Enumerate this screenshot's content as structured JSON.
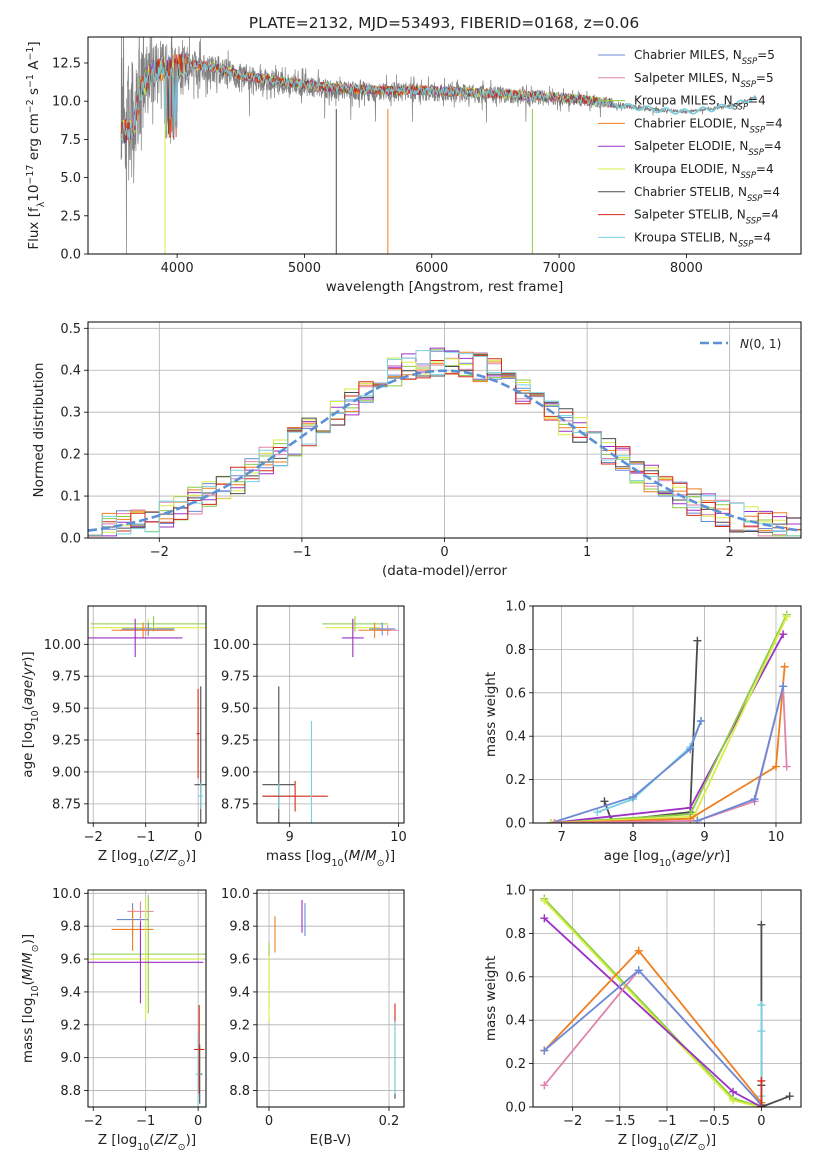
{
  "figure_title": "PLATE=2132, MJD=53493, FIBERID=0168, z=0.06",
  "colors": {
    "Chabrier MILES": "#6b8ad6",
    "Salpeter MILES": "#e083ad",
    "Kroupa MILES": "#8ccb47",
    "Chabrier ELODIE": "#ef7f21",
    "Salpeter ELODIE": "#9c30c5",
    "Kroupa ELODIE": "#d7ee47",
    "Chabrier STELIB": "#4c4c4c",
    "Salpeter STELIB": "#d42a1b",
    "Kroupa STELIB": "#79d0df",
    "data": "#7f7f7f"
  },
  "chart_data": [
    {
      "id": "spectrum",
      "type": "line",
      "title": "PLATE=2132, MJD=53493, FIBERID=0168, z=0.06",
      "xlabel": "wavelength [Angstrom, rest frame]",
      "ylabel": "Flux [f_λ 10^-17 erg cm^-2 s^-1 A^-1]",
      "xlim": [
        3300,
        8900
      ],
      "ylim": [
        0,
        14.2
      ],
      "xticks": [
        4000,
        5000,
        6000,
        7000,
        8000
      ],
      "yticks": [
        0.0,
        2.5,
        5.0,
        7.5,
        10.0,
        12.5
      ],
      "grid": false,
      "legend": "upper right",
      "legend_entries": [
        {
          "model": "Chabrier MILES",
          "label": "Chabrier MILES, N",
          "sub": "SSP",
          "tail": "=5"
        },
        {
          "model": "Salpeter MILES",
          "label": "Salpeter MILES, N",
          "sub": "SSP",
          "tail": "=5"
        },
        {
          "model": "Kroupa MILES",
          "label": "Kroupa MILES, N",
          "sub": "SSP",
          "tail": "=4"
        },
        {
          "model": "Chabrier ELODIE",
          "label": "Chabrier ELODIE, N",
          "sub": "SSP",
          "tail": "=4"
        },
        {
          "model": "Salpeter ELODIE",
          "label": "Salpeter ELODIE, N",
          "sub": "SSP",
          "tail": "=4"
        },
        {
          "model": "Kroupa ELODIE",
          "label": "Kroupa ELODIE, N",
          "sub": "SSP",
          "tail": "=4"
        },
        {
          "model": "Chabrier STELIB",
          "label": "Chabrier STELIB, N",
          "sub": "SSP",
          "tail": "=4"
        },
        {
          "model": "Salpeter STELIB",
          "label": "Salpeter STELIB, N",
          "sub": "SSP",
          "tail": "=4"
        },
        {
          "model": "Kroupa STELIB",
          "label": "Kroupa STELIB, N",
          "sub": "SSP",
          "tail": "=4"
        }
      ],
      "data_envelope": {
        "x": [
          3560,
          3650,
          3700,
          3800,
          3900,
          4000,
          4100,
          4300,
          4500,
          4800,
          5200,
          5600,
          6000,
          6500,
          6900,
          7200,
          7400,
          7600,
          7800,
          8000,
          8200,
          8400,
          8550
        ],
        "y": [
          8.5,
          8.6,
          10.5,
          11.8,
          12.0,
          12.2,
          12.3,
          12.1,
          11.6,
          11.2,
          10.8,
          10.6,
          10.6,
          10.4,
          10.2,
          10.0,
          9.8,
          9.6,
          9.4,
          9.3,
          9.5,
          9.8,
          10.3
        ],
        "noise_amplitude": [
          9.0,
          8.0,
          6.0,
          4.0,
          3.5,
          3.0,
          2.5,
          1.9,
          1.7,
          1.5,
          1.3,
          1.3,
          1.3,
          1.2,
          1.0,
          0.8,
          0.5,
          0.3,
          0.25,
          0.2,
          0.2,
          0.2,
          0.2
        ]
      },
      "model_end_wavelength": 7420,
      "absorption_spikes": [
        {
          "model": "Kroupa ELODIE",
          "x": 3905
        },
        {
          "model": "Chabrier ELODIE",
          "x": 5655
        },
        {
          "model": "Kroupa MILES",
          "x": 6790
        },
        {
          "model": "Chabrier STELIB",
          "x": 5250
        }
      ]
    },
    {
      "id": "residuals",
      "type": "step",
      "xlabel": "(data-model)/error",
      "ylabel": "Normed distribution",
      "xlim": [
        -2.5,
        2.5
      ],
      "ylim": [
        0,
        0.515
      ],
      "xticks": [
        -2,
        -1,
        0,
        1,
        2
      ],
      "yticks": [
        0.0,
        0.1,
        0.2,
        0.3,
        0.4,
        0.5
      ],
      "grid": true,
      "legend": "upper right",
      "reference_label": "N(0, 1)",
      "bin_width": 0.1,
      "bin_start": -2.5
    },
    {
      "id": "age_vs_Z",
      "type": "errorbar",
      "xlabel": "Z [log10(Z/Z_sun)]",
      "ylabel": "age  [log10(age/yr)]",
      "xlim": [
        -2.1,
        0.15
      ],
      "ylim": [
        8.6,
        10.3
      ],
      "xticks": [
        -2,
        -1,
        0
      ],
      "yticks": [
        8.75,
        9.0,
        9.25,
        9.5,
        9.75,
        10.0
      ],
      "grid": true,
      "series": [
        {
          "model": "Kroupa MILES",
          "x": -0.85,
          "xerr": 1.2,
          "y": 10.16,
          "yerr": 0.06
        },
        {
          "model": "Kroupa ELODIE",
          "x": -0.95,
          "xerr": 1.1,
          "y": 10.13,
          "yerr": 0.07
        },
        {
          "model": "Chabrier MILES",
          "x": -0.95,
          "xerr": 0.5,
          "y": 10.12,
          "yerr": 0.05
        },
        {
          "model": "Salpeter MILES",
          "x": -1.0,
          "xerr": 0.5,
          "y": 10.11,
          "yerr": 0.04
        },
        {
          "model": "Chabrier ELODIE",
          "x": -1.05,
          "xerr": 0.6,
          "y": 10.11,
          "yerr": 0.06
        },
        {
          "model": "Salpeter ELODIE",
          "x": -1.2,
          "xerr": 0.9,
          "y": 10.05,
          "yerr": 0.15
        },
        {
          "model": "Chabrier STELIB",
          "x": 0.05,
          "xerr": 0.12,
          "y": 8.9,
          "yerr": 0.77
        },
        {
          "model": "Kroupa STELIB",
          "x": 0.05,
          "xerr": 0.05,
          "y": 8.81,
          "yerr": 0.1
        },
        {
          "model": "Salpeter STELIB",
          "x": 0.0,
          "xerr": 0.03,
          "y": 9.3,
          "yerr": 0.35
        }
      ]
    },
    {
      "id": "age_vs_mass",
      "type": "errorbar",
      "xlabel": "mass [log10(M/M_sun)]",
      "ylabel": "",
      "xlim": [
        8.7,
        10.05
      ],
      "ylim": [
        8.6,
        10.3
      ],
      "xticks": [
        9,
        10
      ],
      "yticks": [
        8.75,
        9.0,
        9.25,
        9.5,
        9.75,
        10.0
      ],
      "grid": true,
      "series": [
        {
          "model": "Kroupa MILES",
          "x": 9.6,
          "xerr": 0.3,
          "y": 10.16,
          "yerr": 0.06
        },
        {
          "model": "Kroupa ELODIE",
          "x": 9.58,
          "xerr": 0.25,
          "y": 10.13,
          "yerr": 0.07
        },
        {
          "model": "Chabrier MILES",
          "x": 9.85,
          "xerr": 0.12,
          "y": 10.12,
          "yerr": 0.05
        },
        {
          "model": "Salpeter MILES",
          "x": 9.9,
          "xerr": 0.1,
          "y": 10.11,
          "yerr": 0.04
        },
        {
          "model": "Chabrier ELODIE",
          "x": 9.78,
          "xerr": 0.15,
          "y": 10.11,
          "yerr": 0.06
        },
        {
          "model": "Salpeter ELODIE",
          "x": 9.58,
          "xerr": 0.1,
          "y": 10.05,
          "yerr": 0.15
        },
        {
          "model": "Chabrier STELIB",
          "x": 8.9,
          "xerr": 0.15,
          "y": 8.9,
          "yerr": 0.77
        },
        {
          "model": "Kroupa STELIB",
          "x": 8.9,
          "xerr": 0.15,
          "y": 8.81,
          "yerr": 0.1
        },
        {
          "model": "Salpeter STELIB",
          "x": 9.05,
          "xerr": 0.3,
          "y": 8.81,
          "yerr": 0.12
        },
        {
          "model": "Kroupa STELIB",
          "x": 9.2,
          "xerr": 0.0,
          "y": 9.0,
          "yerr": 0.4
        }
      ]
    },
    {
      "id": "weight_vs_age",
      "type": "line",
      "xlabel": "age  [log10(age/yr)]",
      "ylabel": "mass weight",
      "xlim": [
        6.6,
        10.35
      ],
      "ylim": [
        0,
        1.0
      ],
      "xticks": [
        7,
        8,
        9,
        10
      ],
      "yticks": [
        0.0,
        0.2,
        0.4,
        0.6,
        0.8,
        1.0
      ],
      "grid": true,
      "series": [
        {
          "model": "Chabrier STELIB",
          "x": [
            7.6,
            7.7,
            8.8,
            8.9
          ],
          "y": [
            0.1,
            0.01,
            0.05,
            0.84
          ]
        },
        {
          "model": "Kroupa STELIB",
          "x": [
            7.5,
            8.0,
            8.8,
            8.95
          ],
          "y": [
            0.05,
            0.11,
            0.35,
            0.47
          ]
        },
        {
          "model": "Chabrier MILES",
          "x": [
            6.85,
            8.0,
            8.8,
            8.95
          ],
          "y": [
            0.0,
            0.12,
            0.34,
            0.47
          ]
        },
        {
          "model": "Salpeter ELODIE",
          "x": [
            6.85,
            8.8,
            10.1
          ],
          "y": [
            0.0,
            0.07,
            0.87
          ]
        },
        {
          "model": "Kroupa MILES",
          "x": [
            6.85,
            8.8,
            10.15
          ],
          "y": [
            0.0,
            0.04,
            0.96
          ]
        },
        {
          "model": "Kroupa ELODIE",
          "x": [
            6.85,
            8.85,
            10.15
          ],
          "y": [
            0.0,
            0.03,
            0.95
          ]
        },
        {
          "model": "Chabrier ELODIE",
          "x": [
            6.9,
            8.8,
            10.0,
            10.12
          ],
          "y": [
            0.0,
            0.02,
            0.26,
            0.72
          ]
        },
        {
          "model": "Salpeter MILES",
          "x": [
            6.9,
            8.9,
            9.7,
            10.1,
            10.15
          ],
          "y": [
            0.0,
            0.01,
            0.1,
            0.63,
            0.26
          ]
        },
        {
          "model": "Chabrier MILES",
          "x": [
            8.9,
            9.7,
            10.1
          ],
          "y": [
            0.01,
            0.11,
            0.63
          ]
        }
      ]
    },
    {
      "id": "mass_vs_Z",
      "type": "errorbar",
      "xlabel": "Z [log10(Z/Z_sun)]",
      "ylabel": "mass [log10(M/M_sun)]",
      "xlim": [
        -2.1,
        0.15
      ],
      "ylim": [
        8.7,
        10.02
      ],
      "xticks": [
        -2,
        -1,
        0
      ],
      "yticks": [
        8.8,
        9.0,
        9.2,
        9.4,
        9.6,
        9.8,
        10.0
      ],
      "grid": true,
      "series": [
        {
          "model": "Chabrier MILES",
          "x": -1.25,
          "xerr": 0.3,
          "y": 9.84,
          "yerr": 0.1
        },
        {
          "model": "Salpeter MILES",
          "x": -1.1,
          "xerr": 0.25,
          "y": 9.89,
          "yerr": 0.06
        },
        {
          "model": "Chabrier ELODIE",
          "x": -1.25,
          "xerr": 0.4,
          "y": 9.78,
          "yerr": 0.13
        },
        {
          "model": "Kroupa MILES",
          "x": -0.95,
          "xerr": 1.1,
          "y": 9.63,
          "yerr": 0.36
        },
        {
          "model": "Kroupa ELODIE",
          "x": -1.0,
          "xerr": 1.1,
          "y": 9.6,
          "yerr": 0.37
        },
        {
          "model": "Salpeter ELODIE",
          "x": -1.1,
          "xerr": 1.2,
          "y": 9.58,
          "yerr": 0.25
        },
        {
          "model": "Chabrier STELIB",
          "x": 0.03,
          "xerr": 0.05,
          "y": 8.9,
          "yerr": 0.18
        },
        {
          "model": "Kroupa STELIB",
          "x": 0.0,
          "xerr": 0.05,
          "y": 8.9,
          "yerr": 0.25
        },
        {
          "model": "Salpeter STELIB",
          "x": 0.02,
          "xerr": 0.1,
          "y": 9.05,
          "yerr": 0.27
        }
      ]
    },
    {
      "id": "mass_vs_EBV",
      "type": "errorbar",
      "xlabel": "E(B-V)",
      "ylabel": "",
      "xlim": [
        -0.02,
        0.225
      ],
      "ylim": [
        8.7,
        10.02
      ],
      "xticks": [
        0.0,
        0.2
      ],
      "yticks": [
        8.8,
        9.0,
        9.2,
        9.4,
        9.6,
        9.8,
        10.0
      ],
      "grid": true,
      "series": [
        {
          "model": "Chabrier MILES",
          "x": 0.06,
          "xerr": 0.0,
          "y": 9.84,
          "yerr": 0.1
        },
        {
          "model": "Salpeter ELODIE",
          "x": 0.055,
          "xerr": 0.0,
          "y": 9.86,
          "yerr": 0.1
        },
        {
          "model": "Chabrier ELODIE",
          "x": 0.01,
          "xerr": 0.0,
          "y": 9.75,
          "yerr": 0.11
        },
        {
          "model": "Kroupa MILES",
          "x": 0.0,
          "xerr": 0.0,
          "y": 9.5,
          "yerr": 0.2
        },
        {
          "model": "Kroupa ELODIE",
          "x": 0.0,
          "xerr": 0.0,
          "y": 9.42,
          "yerr": 0.2
        },
        {
          "model": "Salpeter STELIB",
          "x": 0.21,
          "xerr": 0.0,
          "y": 9.25,
          "yerr": 0.08
        },
        {
          "model": "Chabrier STELIB",
          "x": 0.21,
          "xerr": 0.0,
          "y": 8.95,
          "yerr": 0.2
        },
        {
          "model": "Kroupa STELIB",
          "x": 0.21,
          "xerr": 0.0,
          "y": 9.0,
          "yerr": 0.22
        }
      ]
    },
    {
      "id": "weight_vs_Z",
      "type": "line",
      "xlabel": "Z [log10(Z/Z_sun)]",
      "ylabel": "mass weight",
      "xlim": [
        -2.42,
        0.42
      ],
      "ylim": [
        0,
        1.0
      ],
      "xticks": [
        -2.0,
        -1.5,
        -1.0,
        -0.5,
        0.0
      ],
      "yticks": [
        0.0,
        0.2,
        0.4,
        0.6,
        0.8,
        1.0
      ],
      "grid": true,
      "series": [
        {
          "model": "Kroupa MILES",
          "x": [
            -2.3,
            -0.3,
            0.0
          ],
          "y": [
            0.96,
            0.04,
            0.0
          ]
        },
        {
          "model": "Kroupa ELODIE",
          "x": [
            -2.3,
            -0.3,
            0.0
          ],
          "y": [
            0.95,
            0.03,
            0.0
          ]
        },
        {
          "model": "Salpeter ELODIE",
          "x": [
            -2.3,
            -0.3,
            0.0
          ],
          "y": [
            0.87,
            0.07,
            0.0
          ]
        },
        {
          "model": "Chabrier ELODIE",
          "x": [
            -2.3,
            -1.3,
            0.0
          ],
          "y": [
            0.26,
            0.72,
            0.02
          ]
        },
        {
          "model": "Salpeter MILES",
          "x": [
            -2.3,
            -1.3,
            0.0
          ],
          "y": [
            0.1,
            0.63,
            0.01
          ]
        },
        {
          "model": "Chabrier MILES",
          "x": [
            -2.3,
            -1.3,
            0.0
          ],
          "y": [
            0.26,
            0.63,
            0.01
          ]
        },
        {
          "model": "Chabrier STELIB",
          "x": [
            0.0,
            0.0,
            0.0,
            0.3
          ],
          "y": [
            0.84,
            0.1,
            0.0,
            0.05
          ]
        },
        {
          "model": "Kroupa STELIB",
          "x": [
            0.0,
            0.0,
            0.0
          ],
          "y": [
            0.47,
            0.35,
            0.05
          ]
        },
        {
          "model": "Salpeter STELIB",
          "x": [
            0.0,
            0.0
          ],
          "y": [
            0.12,
            0.0
          ]
        }
      ]
    }
  ]
}
